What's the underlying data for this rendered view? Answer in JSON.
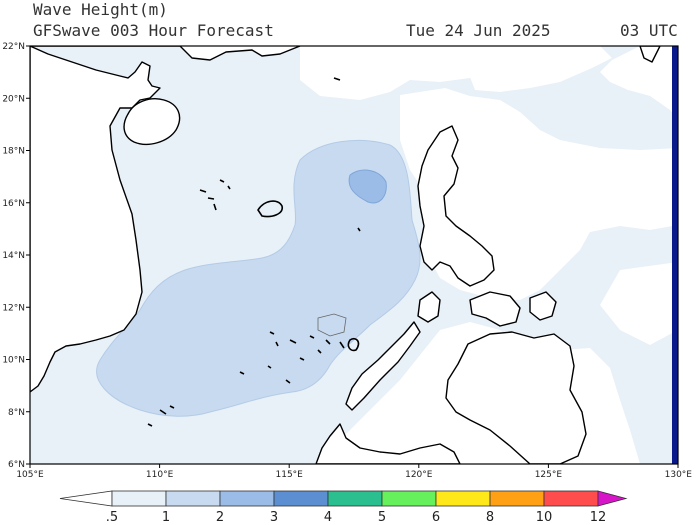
{
  "header": {
    "title": "Wave Height(m)",
    "subtitle": "GFSwave 003 Hour Forecast",
    "date": "Tue 24 Jun 2025",
    "hour": "03 UTC"
  },
  "map": {
    "lon_range": [
      105,
      130
    ],
    "lat_range": [
      6,
      22
    ],
    "lon_ticks": [
      "105°E",
      "110°E",
      "115°E",
      "120°E",
      "125°E",
      "130°E"
    ],
    "lat_ticks": [
      "22°N",
      "20°N",
      "18°N",
      "16°N",
      "14°N",
      "12°N",
      "10°N",
      "8°N",
      "6°N"
    ]
  },
  "legend": {
    "labels": [
      ".5",
      "1",
      "2",
      "3",
      "4",
      "5",
      "6",
      "8",
      "10",
      "12"
    ],
    "colors": [
      "#ffffff",
      "#e8f0f8",
      "#c8daf0",
      "#9bbce6",
      "#5b8fd2",
      "#2bbf8f",
      "#66f05c",
      "#ffe81a",
      "#ffa015",
      "#ff4d4d",
      "#c00000",
      "#d815c8"
    ]
  }
}
